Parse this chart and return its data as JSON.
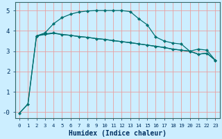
{
  "xlabel": "Humidex (Indice chaleur)",
  "bg_color": "#cceeff",
  "grid_color": "#e8a0a0",
  "line_color": "#007070",
  "xlim": [
    -0.5,
    23.5
  ],
  "ylim": [
    -0.3,
    5.4
  ],
  "yticks": [
    0,
    1,
    2,
    3,
    4,
    5
  ],
  "ytick_labels": [
    "-0",
    "1",
    "2",
    "3",
    "4",
    "5"
  ],
  "xticks": [
    0,
    1,
    2,
    3,
    4,
    5,
    6,
    7,
    8,
    9,
    10,
    11,
    12,
    13,
    14,
    15,
    16,
    17,
    18,
    19,
    20,
    21,
    22,
    23
  ],
  "line_top_x": [
    0,
    1,
    2,
    3,
    4,
    5,
    6,
    7,
    8,
    9,
    10,
    11,
    12,
    13,
    14,
    15,
    16,
    17,
    18,
    19,
    20,
    21,
    22,
    23
  ],
  "line_top_y": [
    -0.05,
    0.4,
    3.75,
    3.9,
    4.35,
    4.65,
    4.82,
    4.93,
    4.98,
    5.0,
    5.0,
    5.0,
    5.0,
    4.95,
    4.6,
    4.3,
    3.7,
    3.5,
    3.4,
    3.35,
    3.0,
    3.1,
    3.05,
    2.55
  ],
  "line_mid_x": [
    2,
    3,
    4,
    5,
    6,
    7,
    8,
    9,
    10,
    11,
    12,
    13,
    14,
    15,
    16,
    17,
    18,
    19,
    20,
    21,
    22,
    23
  ],
  "line_mid_y": [
    3.75,
    3.85,
    3.9,
    3.82,
    3.78,
    3.72,
    3.68,
    3.62,
    3.58,
    3.52,
    3.47,
    3.42,
    3.36,
    3.3,
    3.24,
    3.18,
    3.1,
    3.05,
    3.0,
    2.85,
    2.9,
    2.55
  ],
  "line_bot_x": [
    0,
    1,
    2,
    3,
    4,
    5,
    6,
    7,
    8,
    9,
    10,
    11,
    12,
    13,
    14,
    15,
    16,
    17,
    18,
    19,
    20,
    21,
    22,
    23
  ],
  "line_bot_y": [
    -0.05,
    0.4,
    3.75,
    3.82,
    3.88,
    3.82,
    3.78,
    3.72,
    3.68,
    3.62,
    3.58,
    3.52,
    3.47,
    3.42,
    3.36,
    3.3,
    3.24,
    3.18,
    3.1,
    3.05,
    3.0,
    2.85,
    2.9,
    2.55
  ]
}
